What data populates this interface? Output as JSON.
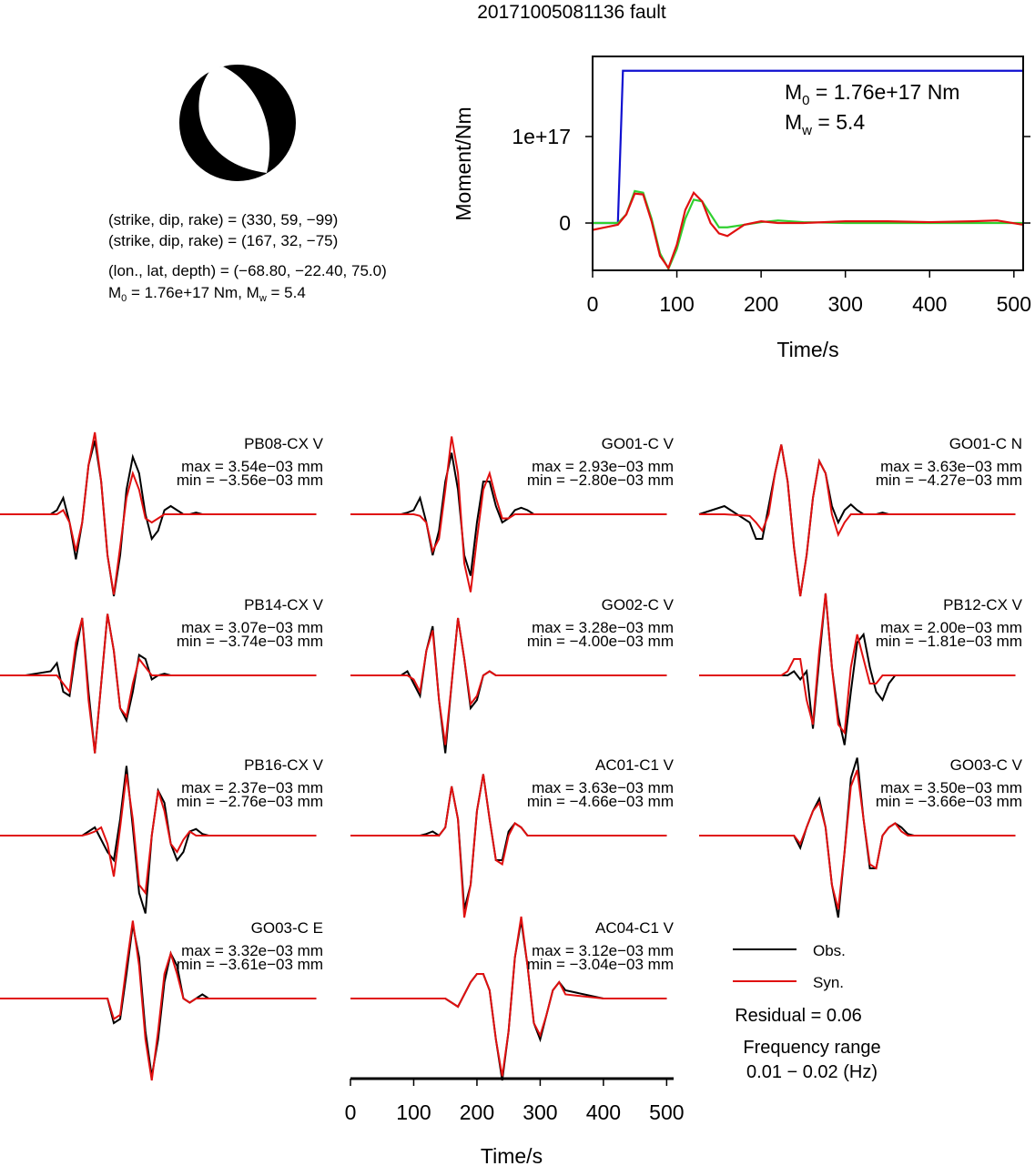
{
  "title": "20171005081136 fault",
  "mechanism": {
    "lines": [
      "(strike, dip, rake) = (330, 59, −99)",
      "(strike, dip, rake) = (167, 32, −75)",
      "(lon., lat, depth) = (−68.80, −22.40, 75.0)"
    ],
    "summary": [
      "M",
      "0",
      " = 1.76e+17 Nm, M",
      "w",
      " = 5.4"
    ]
  },
  "chart_data": [
    {
      "type": "line",
      "ylabel": "Moment/Nm",
      "xlabel": "Time/s",
      "xlim": [
        0,
        511
      ],
      "ylim": [
        -5.47e+16,
        1.926e+17
      ],
      "xticks": [
        0,
        100,
        200,
        300,
        400,
        500
      ],
      "yticks": [
        0,
        {
          "value": 1e+17,
          "label": "1e+17"
        }
      ],
      "annotations": [
        [
          "M",
          "0",
          " = 1.76e+17 Nm"
        ],
        [
          "M",
          "w",
          " = 5.4"
        ]
      ],
      "series": [
        {
          "color": "#1010d0",
          "x": [
            0,
            30,
            36,
            511
          ],
          "values": [
            0,
            0,
            1.76e+17,
            1.76e+17
          ]
        },
        {
          "color": "#30d030",
          "x": [
            0,
            10,
            20,
            30,
            40,
            50,
            60,
            70,
            80,
            90,
            100,
            110,
            120,
            130,
            140,
            150,
            160,
            180,
            200,
            220,
            250,
            300,
            350,
            400,
            450,
            480,
            511
          ],
          "values": [
            0,
            0,
            0,
            0,
            1e+16,
            3.7e+16,
            3.5e+16,
            5000000000000000.0,
            -3.5e+16,
            -5.3e+16,
            -3e+16,
            5000000000000000.0,
            2.7e+16,
            2.5e+16,
            1e+16,
            -5000000000000000.0,
            -5000000000000000.0,
            -2000000000000000.0,
            1000000000000000.0,
            3000000000000000.0,
            1000000000000000.0,
            0,
            0,
            0,
            0,
            0,
            0
          ]
        },
        {
          "color": "#e01010",
          "x": [
            0,
            10,
            20,
            30,
            40,
            50,
            60,
            70,
            80,
            90,
            100,
            110,
            120,
            130,
            140,
            150,
            160,
            180,
            200,
            220,
            250,
            300,
            350,
            400,
            450,
            480,
            511
          ],
          "values": [
            -8000000000000000.0,
            -6000000000000000.0,
            -4000000000000000.0,
            -2000000000000000.0,
            1e+16,
            3.4e+16,
            3.3e+16,
            2000000000000000.0,
            -3.8e+16,
            -5.2e+16,
            -2.5e+16,
            1.5e+16,
            3.5e+16,
            2.5e+16,
            0,
            -1.2e+16,
            -1.5e+16,
            -2000000000000000.0,
            2000000000000000.0,
            0,
            0,
            2000000000000000.0,
            2000000000000000.0,
            1000000000000000.0,
            2000000000000000.0,
            3000000000000000.0,
            -2000000000000000.0
          ]
        }
      ]
    },
    {
      "type": "waveforms",
      "xlabel": "Time/s",
      "xlim": [
        0,
        511
      ],
      "xticks": [
        0,
        100,
        200,
        300,
        400,
        500
      ],
      "x": [
        0,
        40,
        80,
        90,
        100,
        110,
        120,
        130,
        140,
        150,
        160,
        170,
        180,
        190,
        200,
        210,
        220,
        230,
        240,
        250,
        260,
        270,
        280,
        290,
        300,
        310,
        320,
        330,
        340,
        400,
        460,
        500
      ],
      "legend": [
        {
          "name": "Obs.",
          "color": "#000000"
        },
        {
          "name": "Syn.",
          "color": "#e01010"
        }
      ],
      "residual": "Residual = 0.06",
      "frequency": [
        "Frequency range",
        "0.01 − 0.02 (Hz)"
      ],
      "panels": [
        {
          "label": "PB08-CX V",
          "max": "max = 3.54e−03 mm",
          "min": "min = −3.56e−03 mm",
          "obs": [
            0,
            0,
            0,
            0.05,
            0.2,
            -0.1,
            -0.55,
            -0.1,
            0.6,
            0.9,
            0.4,
            -0.5,
            -1.0,
            -0.5,
            0.3,
            0.7,
            0.5,
            0,
            -0.3,
            -0.2,
            0.05,
            0.1,
            0.05,
            0,
            0,
            0.02,
            0,
            0,
            0,
            0,
            0,
            0
          ],
          "syn": [
            0,
            0,
            0,
            0,
            0.05,
            -0.1,
            -0.45,
            -0.1,
            0.6,
            1.0,
            0.4,
            -0.5,
            -0.98,
            -0.4,
            0.2,
            0.5,
            0.3,
            -0.05,
            -0.1,
            -0.05,
            0,
            0,
            0,
            0,
            0,
            0,
            0,
            0,
            0,
            0,
            0,
            0
          ]
        },
        {
          "label": "GO01-C V",
          "max": "max = 2.93e−03 mm",
          "min": "min = −2.80e−03 mm",
          "obs": [
            0,
            0,
            0,
            0.02,
            0.05,
            0.2,
            -0.1,
            -0.5,
            -0.2,
            0.4,
            0.75,
            0.3,
            -0.5,
            -0.75,
            -0.1,
            0.4,
            0.4,
            0.1,
            -0.1,
            -0.05,
            0.05,
            0.08,
            0.05,
            0,
            0,
            0,
            0,
            0,
            0,
            0,
            0,
            0
          ],
          "syn": [
            0,
            0,
            0,
            0,
            0,
            -0.02,
            -0.1,
            -0.45,
            -0.3,
            0.3,
            0.95,
            0.5,
            -0.6,
            -0.95,
            -0.3,
            0.3,
            0.5,
            0.2,
            -0.05,
            -0.05,
            0,
            0,
            0,
            0,
            0,
            0,
            0,
            0,
            0,
            0,
            0,
            0
          ]
        },
        {
          "label": "GO01-C N",
          "max": "max = 3.63e−03 mm",
          "min": "min = −4.27e−03 mm",
          "obs": [
            0,
            0.1,
            -0.1,
            -0.3,
            -0.3,
            0.1,
            0.5,
            0.85,
            0.4,
            -0.4,
            -1.0,
            -0.5,
            0.2,
            0.65,
            0.5,
            0.1,
            -0.1,
            0.05,
            0.12,
            0.05,
            0,
            0,
            0,
            0.02,
            0,
            0,
            0,
            0,
            0,
            0,
            0,
            0
          ],
          "syn": [
            0,
            0,
            -0.02,
            -0.1,
            -0.2,
            0,
            0.5,
            0.85,
            0.4,
            -0.4,
            -1.0,
            -0.5,
            0.2,
            0.65,
            0.5,
            0,
            -0.25,
            -0.1,
            0,
            0,
            0,
            0,
            0,
            0,
            0,
            0,
            0,
            0,
            0,
            0,
            0,
            0
          ]
        },
        {
          "label": "PB14-CX V",
          "max": "max = 3.07e−03 mm",
          "min": "min = −3.74e−03 mm",
          "obs": [
            0,
            0,
            0.05,
            0.15,
            -0.2,
            -0.25,
            0.3,
            0.7,
            -0.2,
            -0.95,
            -0.1,
            0.75,
            0.3,
            -0.4,
            -0.55,
            -0.2,
            0.25,
            0.2,
            -0.05,
            0,
            0.02,
            0,
            0,
            0,
            0,
            0,
            0,
            0,
            0,
            0,
            0,
            0
          ],
          "syn": [
            0,
            0,
            0,
            0,
            -0.1,
            -0.2,
            0.4,
            0.7,
            -0.3,
            -0.95,
            -0.1,
            0.75,
            0.3,
            -0.4,
            -0.5,
            -0.1,
            0.2,
            0.1,
            0,
            0,
            0,
            0,
            0,
            0,
            0,
            0,
            0,
            0,
            0,
            0,
            0,
            0
          ]
        },
        {
          "label": "GO02-C V",
          "max": "max = 3.28e−03 mm",
          "min": "min = −4.00e−03 mm",
          "obs": [
            0,
            0,
            0,
            0.05,
            -0.1,
            -0.25,
            0.3,
            0.6,
            -0.3,
            -0.95,
            -0.1,
            0.7,
            0.2,
            -0.4,
            -0.3,
            0,
            0.05,
            0,
            0,
            0,
            0,
            0,
            0,
            0,
            0,
            0,
            0,
            0,
            0,
            0,
            0,
            0
          ],
          "syn": [
            0,
            0,
            0,
            0,
            -0.05,
            -0.2,
            0.3,
            0.55,
            -0.3,
            -0.85,
            -0.1,
            0.7,
            0.2,
            -0.35,
            -0.25,
            0,
            0.05,
            0,
            0,
            0,
            0,
            0,
            0,
            0,
            0,
            0,
            0,
            0,
            0,
            0,
            0,
            0
          ]
        },
        {
          "label": "PB12-CX V",
          "max": "max = 2.00e−03 mm",
          "min": "min = −1.81e−03 mm",
          "obs": [
            0,
            0,
            0,
            0,
            0,
            0,
            0,
            0,
            0,
            0.05,
            -0.05,
            0.05,
            -0.65,
            0.2,
            1.0,
            0.1,
            -0.5,
            -0.85,
            -0.2,
            0.4,
            0.5,
            0.1,
            -0.2,
            -0.3,
            -0.1,
            0,
            0,
            0,
            0,
            0,
            0,
            0
          ],
          "syn": [
            0,
            0,
            0,
            0,
            0,
            0,
            0,
            0,
            0.05,
            0.2,
            0.2,
            -0.3,
            -0.6,
            0.3,
            1.0,
            0.1,
            -0.6,
            -0.7,
            0.1,
            0.5,
            0.2,
            -0.1,
            -0.1,
            0,
            0,
            0,
            0,
            0,
            0,
            0,
            0,
            0
          ]
        },
        {
          "label": "PB16-CX V",
          "max": "max = 2.37e−03 mm",
          "min": "min = −2.76e−03 mm",
          "obs": [
            0,
            0,
            0,
            0,
            0,
            0,
            0,
            0,
            0.05,
            0.1,
            -0.05,
            -0.2,
            -0.3,
            0.2,
            0.85,
            0.1,
            -0.7,
            -0.95,
            0,
            0.55,
            0.4,
            -0.1,
            -0.3,
            -0.2,
            0.05,
            0.08,
            0.02,
            0,
            0,
            0,
            0,
            0
          ],
          "syn": [
            0,
            0,
            0,
            0,
            0,
            0,
            0,
            0,
            0.02,
            0.05,
            0.1,
            -0.1,
            -0.5,
            0.1,
            0.75,
            0.2,
            -0.6,
            -0.7,
            0,
            0.55,
            0.3,
            -0.1,
            -0.2,
            -0.05,
            0.05,
            0,
            0,
            0,
            0,
            0,
            0,
            0
          ]
        },
        {
          "label": "AC01-C1 V",
          "max": "max = 3.63e−03 mm",
          "min": "min = −4.66e−03 mm",
          "obs": [
            0,
            0,
            0,
            0,
            0,
            0,
            0.02,
            0.05,
            0,
            0.1,
            0.6,
            0.2,
            -0.9,
            -0.6,
            0.3,
            0.75,
            0.2,
            -0.3,
            -0.3,
            0.05,
            0.15,
            0.1,
            0,
            0,
            0,
            0,
            0,
            0,
            0,
            0,
            0,
            0
          ],
          "syn": [
            0,
            0,
            0,
            0,
            0,
            0,
            0,
            0,
            0,
            0.1,
            0.6,
            0.2,
            -1.0,
            -0.6,
            0.3,
            0.75,
            0.2,
            -0.3,
            -0.35,
            0,
            0.15,
            0.1,
            0,
            0,
            0,
            0,
            0,
            0,
            0,
            0,
            0,
            0
          ]
        },
        {
          "label": "GO03-C V",
          "max": "max = 3.50e−03 mm",
          "min": "min = −3.66e−03 mm",
          "obs": [
            0,
            0,
            0,
            0,
            0,
            0,
            0,
            0,
            0,
            0,
            -0.15,
            0.1,
            0.3,
            0.45,
            0.1,
            -0.6,
            -1.0,
            -0.2,
            0.7,
            0.95,
            0.2,
            -0.4,
            -0.4,
            0,
            0.1,
            0.15,
            0.1,
            0.02,
            0,
            0,
            0,
            0
          ],
          "syn": [
            0,
            0,
            0,
            0,
            0,
            0,
            0,
            0,
            0,
            0,
            -0.1,
            0.1,
            0.3,
            0.4,
            0.1,
            -0.6,
            -0.9,
            -0.2,
            0.6,
            0.8,
            0.2,
            -0.35,
            -0.4,
            0,
            0.1,
            0.15,
            0.05,
            0,
            0,
            0,
            0,
            0
          ]
        },
        {
          "label": "GO03-C E",
          "max": "max = 3.32e−03 mm",
          "min": "min = −3.61e−03 mm",
          "obs": [
            0,
            0,
            0,
            0,
            0,
            0,
            0,
            0,
            0,
            0,
            0,
            0,
            -0.3,
            -0.25,
            0.3,
            0.9,
            0.5,
            -0.4,
            -0.95,
            -0.5,
            0.2,
            0.55,
            0.4,
            0,
            -0.05,
            0,
            0.05,
            0,
            0,
            0,
            0,
            0
          ],
          "syn": [
            0,
            0,
            0,
            0,
            0,
            0,
            0,
            0,
            0,
            0,
            0,
            0,
            -0.25,
            -0.2,
            0.4,
            0.95,
            0.4,
            -0.5,
            -1.0,
            -0.4,
            0.3,
            0.55,
            0.3,
            0,
            -0.05,
            0,
            0,
            0,
            0,
            0,
            0,
            0
          ]
        },
        {
          "label": "AC04-C1 V",
          "max": "max = 3.12e−03 mm",
          "min": "min = −3.04e−03 mm",
          "obs": [
            0,
            0,
            0,
            0,
            0,
            0,
            0,
            0,
            0,
            0,
            -0.05,
            -0.1,
            0.05,
            0.2,
            0.3,
            0.3,
            0.1,
            -0.5,
            -1.0,
            -0.4,
            0.5,
            0.95,
            0.4,
            -0.3,
            -0.5,
            -0.2,
            0.1,
            0.2,
            0.1,
            0,
            0,
            0
          ],
          "syn": [
            0,
            0,
            0,
            0,
            0,
            0,
            0,
            0,
            0,
            0,
            -0.05,
            -0.1,
            0.05,
            0.2,
            0.3,
            0.3,
            0.1,
            -0.5,
            -0.95,
            -0.4,
            0.5,
            1.0,
            0.4,
            -0.3,
            -0.45,
            -0.2,
            0.1,
            0.2,
            0.05,
            0,
            0,
            0
          ]
        }
      ]
    }
  ]
}
